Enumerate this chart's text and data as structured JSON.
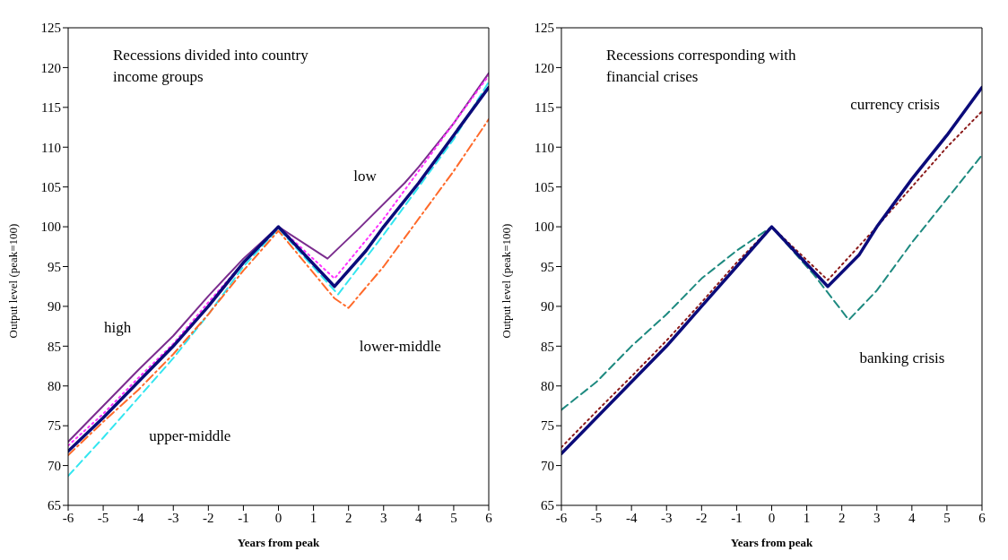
{
  "chart_data": [
    {
      "type": "line",
      "title": "Recessions divided into country income groups",
      "xlabel": "Years from peak",
      "ylabel": "Output level (peak=100)",
      "xlim": [
        -6,
        6
      ],
      "xticks": [
        -6,
        -5,
        -4,
        -3,
        -2,
        -1,
        0,
        1,
        2,
        3,
        4,
        5,
        6
      ],
      "ylim": [
        65,
        125
      ],
      "yticks": [
        65,
        70,
        75,
        80,
        85,
        90,
        95,
        100,
        105,
        110,
        115,
        120,
        125
      ],
      "grid": false,
      "legend": false,
      "marker": "none",
      "series": [
        {
          "color": "#7b2d8e",
          "line_style": "solid",
          "x": [
            -6,
            -5,
            -4,
            -3,
            -2,
            -1,
            0,
            1.4,
            2.3,
            3.6,
            4,
            5,
            6
          ],
          "values": [
            73,
            77.5,
            82,
            86.3,
            91.3,
            96,
            100,
            96,
            99.8,
            105.5,
            107.5,
            113,
            119.3
          ]
        },
        {
          "color": "#ff33ff",
          "line_style": "dotted",
          "x": [
            -6,
            -5,
            -4,
            -3,
            -2,
            -1,
            0,
            1.6,
            3,
            4,
            5,
            6
          ],
          "values": [
            72.5,
            76.5,
            81,
            85.3,
            90.5,
            95.5,
            100,
            93.5,
            101,
            107,
            113,
            119
          ]
        },
        {
          "color": "#33e6f0",
          "line_style": "dashed",
          "x": [
            -6,
            -5,
            -4,
            -3,
            -2,
            -1,
            0,
            1.7,
            3,
            4,
            5,
            6
          ],
          "values": [
            68.7,
            73.5,
            78.5,
            83.5,
            89,
            95,
            99.8,
            91.5,
            99,
            105,
            111,
            118.2
          ]
        },
        {
          "color": "#ff6a2a",
          "line_style": "dashdot",
          "x": [
            -6,
            -5,
            -4,
            -3,
            -2,
            -1,
            0,
            1.6,
            2,
            3,
            4,
            5,
            6
          ],
          "values": [
            71.3,
            75.5,
            79.5,
            84,
            89,
            94.5,
            99.5,
            91,
            89.8,
            95,
            101,
            107,
            113.5
          ]
        },
        {
          "color": "#0b0b7a",
          "line_style": "solid",
          "x": [
            -6,
            -5,
            -4,
            -3,
            -2,
            -1,
            0,
            1.6,
            2.5,
            3,
            4,
            5,
            6
          ],
          "values": [
            71.8,
            76,
            80.5,
            85,
            90,
            95.5,
            100,
            92.5,
            97,
            100,
            105.5,
            111.5,
            117.5
          ]
        }
      ],
      "annotations": [
        {
          "text": "high",
          "x": -4,
          "y": 82
        },
        {
          "text": "low",
          "x": 3,
          "y": 101
        },
        {
          "text": "lower-middle",
          "x": 2,
          "y": 89.8
        },
        {
          "text": "upper-middle",
          "x": -4,
          "y": 78.5
        }
      ]
    },
    {
      "type": "line",
      "title": "Recessions corresponding with financial crises",
      "xlabel": "Years from peak",
      "ylabel": "Output level (peak=100)",
      "xlim": [
        -6,
        6
      ],
      "xticks": [
        -6,
        -5,
        -4,
        -3,
        -2,
        -1,
        0,
        1,
        2,
        3,
        4,
        5,
        6
      ],
      "ylim": [
        65,
        125
      ],
      "yticks": [
        65,
        70,
        75,
        80,
        85,
        90,
        95,
        100,
        105,
        110,
        115,
        120,
        125
      ],
      "grid": false,
      "legend": false,
      "marker": "none",
      "series": [
        {
          "color": "#1e8a80",
          "line_style": "dashed",
          "x": [
            -6,
            -5,
            -4,
            -3,
            -2,
            -1,
            0,
            1.2,
            2.2,
            3,
            4,
            5,
            6
          ],
          "values": [
            77,
            80.5,
            85,
            89,
            93.5,
            97,
            100,
            94,
            88.3,
            92,
            98,
            103.5,
            109
          ]
        },
        {
          "color": "#8b1a1a",
          "line_style": "dotted",
          "x": [
            -6,
            -5,
            -4,
            -3,
            -2,
            -1,
            0,
            1.6,
            3,
            4,
            5,
            6
          ],
          "values": [
            72.3,
            76.8,
            81.2,
            85.7,
            90.5,
            95.5,
            100,
            93.3,
            100,
            105,
            110,
            114.5
          ]
        },
        {
          "color": "#0b0b7a",
          "line_style": "solid",
          "x": [
            -6,
            -5,
            -4,
            -3,
            -2,
            -1,
            0,
            1.6,
            2.5,
            3,
            4,
            5,
            6
          ],
          "values": [
            71.5,
            76,
            80.5,
            85,
            90,
            95,
            100,
            92.5,
            96.5,
            100,
            106,
            111.5,
            117.5
          ]
        }
      ],
      "annotations": [
        {
          "text": "currency crisis",
          "x": 5,
          "y": 110
        },
        {
          "text": "banking crisis",
          "x": 2.2,
          "y": 88.3
        }
      ]
    }
  ]
}
